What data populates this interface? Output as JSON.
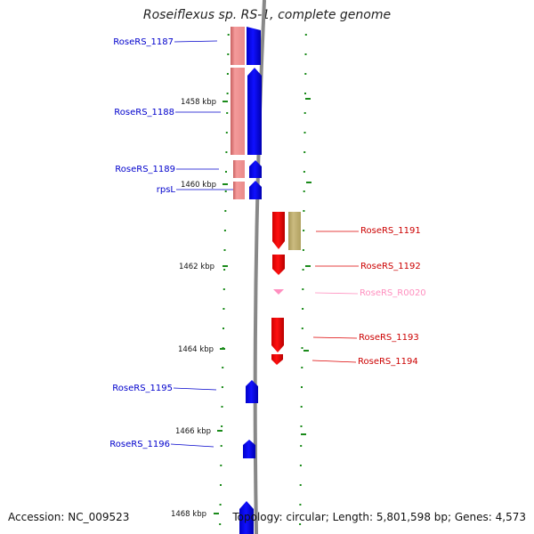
{
  "title": "Roseiflexus sp. RS-1, complete genome",
  "accession": "Accession: NC_009523",
  "topology": "Topology: circular; Length: 5,801,598 bp; Genes: 4,573",
  "colors": {
    "forward_gene": "#0000ff",
    "reverse_gene": "#ff0000",
    "rna_gene": "#ff8fbf",
    "forward_feature_band": "#f08a8a",
    "reverse_feature_band": "#bfb070",
    "backbone": "#888888",
    "tick": "#1a8a1a"
  },
  "kbp_ticks": [
    "1458 kbp",
    "1460 kbp",
    "1462 kbp",
    "1464 kbp",
    "1466 kbp",
    "1468 kbp"
  ],
  "forward_genes": [
    {
      "name": "RoseRS_1187"
    },
    {
      "name": "RoseRS_1188"
    },
    {
      "name": "RoseRS_1189"
    },
    {
      "name": "rpsL"
    },
    {
      "name": "RoseRS_1195"
    },
    {
      "name": "RoseRS_1196"
    }
  ],
  "reverse_genes": [
    {
      "name": "RoseRS_1191"
    },
    {
      "name": "RoseRS_1192"
    },
    {
      "name": "RoseRS_R0020"
    },
    {
      "name": "RoseRS_1193"
    },
    {
      "name": "RoseRS_1194"
    }
  ]
}
